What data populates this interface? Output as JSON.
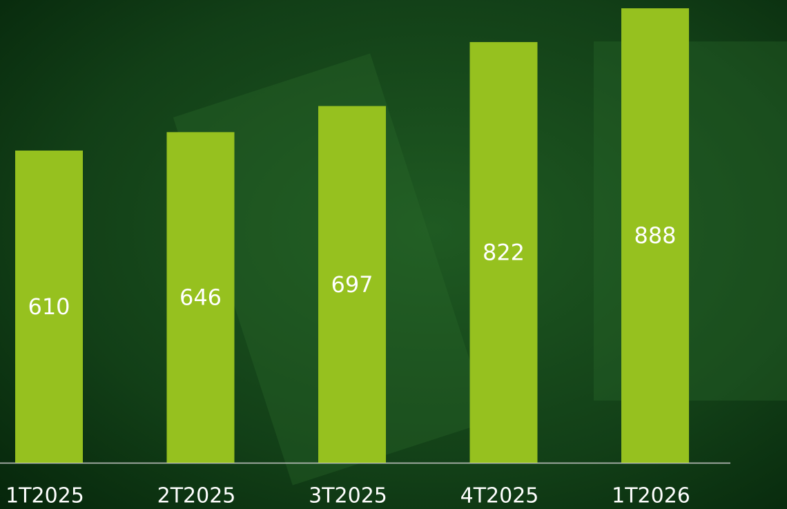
{
  "chart_data": {
    "type": "bar",
    "categories": [
      "1T2025",
      "2T2025",
      "3T2025",
      "4T2025",
      "1T2026"
    ],
    "values": [
      610,
      646,
      697,
      822,
      888
    ],
    "color": "#96c11f"
  }
}
